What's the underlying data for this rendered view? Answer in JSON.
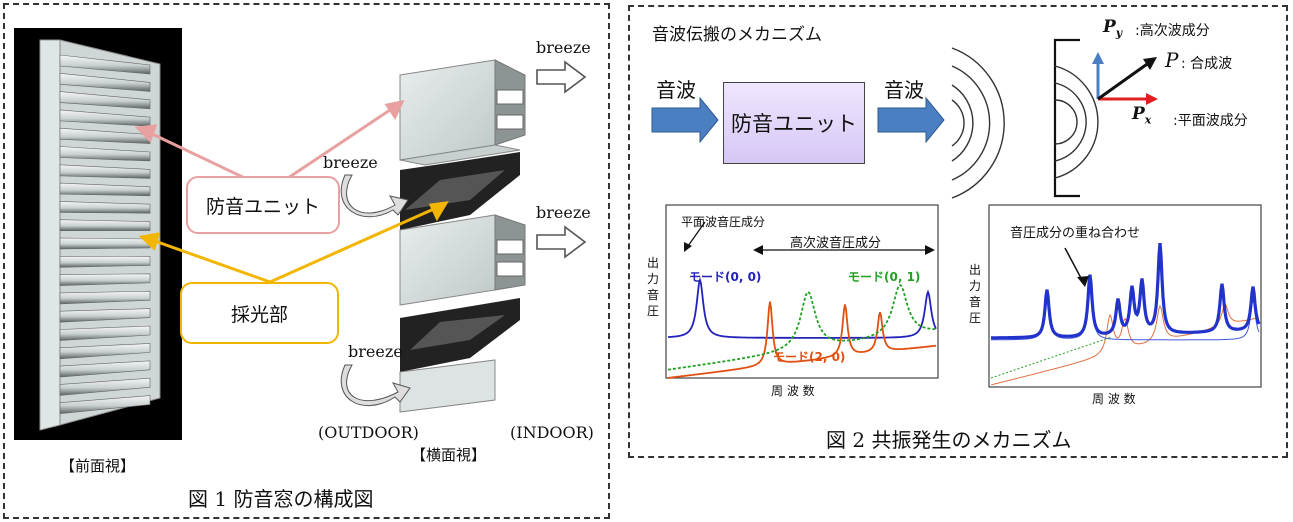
{
  "fig1": {
    "caption": "図 1 防音窓の構成図",
    "front_view_label": "【前面視】",
    "side_view_label": "【横面視】",
    "outdoor_label": "(OUTDOOR)",
    "indoor_label": "(INDOOR)",
    "breeze": "breeze",
    "unit_label": "防音ユニット",
    "daylight_label": "採光部",
    "colors": {
      "unit_arrow": "#e8a0a0",
      "daylight_arrow": "#f2b600"
    }
  },
  "fig2": {
    "caption": "図 2 共振発生のメカニズム",
    "title": "音波伝搬のメカニズム",
    "in_wave": "音波",
    "out_wave": "音波",
    "unit_box": "防音ユニット",
    "py_label": "P",
    "py_sub": "y",
    "py_desc": ":高次波成分",
    "p_label": "P",
    "p_desc": ": 合成波",
    "px_label": "P",
    "px_sub": "x",
    "px_desc": ":平面波成分",
    "colors": {
      "arrow_blue": "#4a7fc1",
      "box_fill": "#e3d7fa",
      "px_red": "#e02020",
      "py_blue": "#4a7fc1"
    }
  },
  "graph_left": {
    "plane_label": "平面波音圧成分",
    "higher_label": "高次波音圧成分",
    "ylabel": [
      "出",
      "力",
      "音",
      "圧"
    ],
    "xlabel": "周 波 数",
    "mode00": "モード(0, 0)",
    "mode01": "モード(0, 1)",
    "mode20": "モード(2, 0)",
    "colors": {
      "mode00": "#2222bb",
      "mode01": "#22a022",
      "mode20": "#e05010"
    }
  },
  "graph_right": {
    "overlay_label": "音圧成分の重ね合わせ",
    "ylabel": [
      "出",
      "力",
      "音",
      "圧"
    ],
    "xlabel": "周 波 数",
    "colors": {
      "sum": "#2233cc",
      "thin_blue": "#4455dd",
      "thin_orange": "#e07040",
      "dotted_green": "#22a022"
    }
  }
}
